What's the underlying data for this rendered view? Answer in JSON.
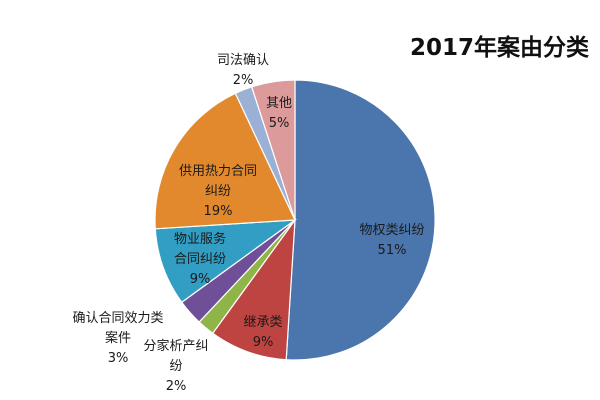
{
  "chart_data": {
    "type": "pie",
    "title": "2017年案由分类",
    "slices": [
      {
        "name": "物权类纠纷",
        "value": 51,
        "label": "51%",
        "color": "#4a76ad"
      },
      {
        "name": "继承类",
        "value": 9,
        "label": "9%",
        "color": "#bd4441"
      },
      {
        "name": "分家析产纠纷",
        "value": 2,
        "label": "2%",
        "color": "#8fb548"
      },
      {
        "name": "确认合同效力类案件",
        "value": 3,
        "label": "3%",
        "color": "#6f4f97"
      },
      {
        "name": "物业服务合同纠纷",
        "value": 9,
        "label": "9%",
        "color": "#339ec3"
      },
      {
        "name": "供用热力合同纠纷",
        "value": 19,
        "label": "19%",
        "color": "#e2892d"
      },
      {
        "name": "司法确认",
        "value": 2,
        "label": "2%",
        "color": "#9bb0d5"
      },
      {
        "name": "其他",
        "value": 5,
        "label": "5%",
        "color": "#dd9a9a"
      }
    ],
    "legend": "none"
  }
}
